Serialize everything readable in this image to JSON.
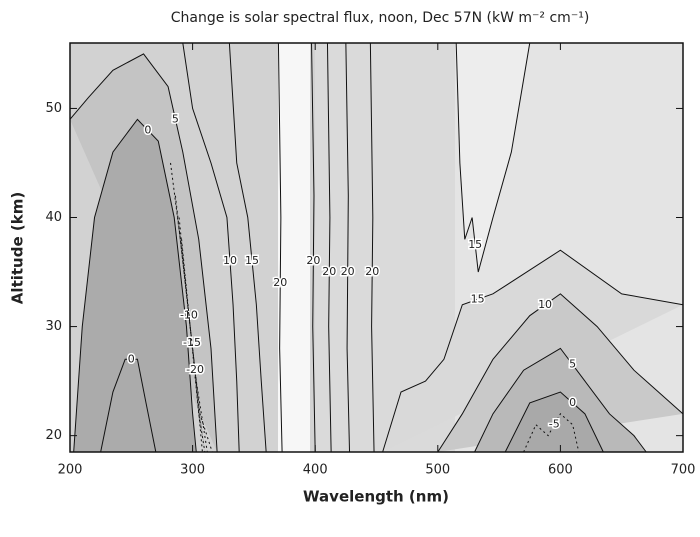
{
  "chart_data": {
    "type": "contour",
    "title": "Change is solar spectral flux, noon, Dec 57N (kW m⁻² cm⁻¹)",
    "xlabel": "Wavelength (nm)",
    "ylabel": "Altitude (km)",
    "xlim": [
      200,
      700
    ],
    "ylim": [
      18.5,
      56
    ],
    "xticks": [
      200,
      300,
      400,
      500,
      600,
      700
    ],
    "yticks": [
      20,
      30,
      40,
      50
    ],
    "contours": [
      {
        "level": 5,
        "fill": "#c4c4c4",
        "x": [
          200,
          215,
          235,
          260,
          280,
          292,
          305,
          315,
          320
        ],
        "y": [
          49,
          51,
          53.5,
          55,
          52,
          46,
          38,
          28,
          18.5
        ]
      },
      {
        "level": 0,
        "fill": "#ababab",
        "x": [
          203,
          210,
          220,
          235,
          255,
          272,
          285,
          295,
          300,
          303
        ],
        "y": [
          18.5,
          30,
          40,
          46,
          49,
          47,
          40,
          30,
          22,
          18.5
        ]
      },
      {
        "level": -5,
        "fill": "#9c9c9c",
        "x": [
          282,
          290,
          298,
          305,
          310
        ],
        "y": [
          45,
          38,
          30,
          22,
          18.5
        ]
      },
      {
        "level": -10,
        "x": [
          286,
          293,
          301,
          308
        ],
        "y": [
          42,
          35,
          27,
          18.5
        ]
      },
      {
        "level": -15,
        "x": [
          289,
          296,
          303,
          312
        ],
        "y": [
          40,
          32,
          25,
          18.5
        ]
      },
      {
        "level": -20,
        "x": [
          291,
          298,
          306,
          316
        ],
        "y": [
          38,
          30,
          22,
          18.5
        ]
      },
      {
        "level": 0,
        "x": [
          225,
          235,
          245,
          255,
          262,
          270
        ],
        "y": [
          18.5,
          24,
          27,
          27,
          23,
          18.5
        ]
      },
      {
        "level": 10,
        "x": [
          292,
          300,
          315,
          328,
          333,
          336,
          338
        ],
        "y": [
          56,
          50,
          45,
          40,
          32,
          25,
          18.5
        ]
      },
      {
        "level": 15,
        "x": [
          330,
          336,
          345,
          352,
          356,
          360
        ],
        "y": [
          56,
          45,
          40,
          32,
          25,
          18.5
        ]
      },
      {
        "level": 20,
        "x": [
          370,
          372,
          371,
          373
        ],
        "y": [
          56,
          40,
          28,
          18.5
        ]
      },
      {
        "level": 20,
        "x": [
          397,
          399,
          398,
          400
        ],
        "y": [
          56,
          42,
          30,
          18.5
        ]
      },
      {
        "level": 20,
        "x": [
          410,
          412,
          411,
          413
        ],
        "y": [
          56,
          40,
          30,
          18.5
        ]
      },
      {
        "level": 20,
        "x": [
          425,
          427,
          426,
          428
        ],
        "y": [
          56,
          42,
          28,
          18.5
        ]
      },
      {
        "level": 20,
        "x": [
          445,
          447,
          446,
          448
        ],
        "y": [
          56,
          40,
          30,
          18.5
        ]
      },
      {
        "level": 15,
        "fill": "#ededed",
        "x": [
          515,
          518,
          522,
          528,
          533,
          545,
          560,
          575
        ],
        "y": [
          56,
          45,
          38,
          40,
          35,
          40,
          46,
          56
        ]
      },
      {
        "level": 15,
        "fill": "#d9d9d9",
        "x": [
          455,
          470,
          490,
          505,
          520,
          545,
          600,
          650,
          700
        ],
        "y": [
          18.5,
          24,
          25,
          27,
          32,
          33,
          37,
          33,
          32
        ]
      },
      {
        "level": 10,
        "fill": "#c9c9c9",
        "x": [
          500,
          520,
          545,
          575,
          600,
          630,
          660,
          700
        ],
        "y": [
          18.5,
          22,
          27,
          31,
          33,
          30,
          26,
          22
        ]
      },
      {
        "level": 5,
        "fill": "#b9b9b9",
        "x": [
          530,
          545,
          570,
          600,
          620,
          640,
          660,
          670
        ],
        "y": [
          18.5,
          22,
          26,
          28,
          25,
          22,
          20,
          18.5
        ]
      },
      {
        "level": 0,
        "fill": "#a9a9a9",
        "x": [
          555,
          575,
          600,
          620,
          635
        ],
        "y": [
          18.5,
          23,
          24,
          22,
          18.5
        ]
      },
      {
        "level": -5,
        "x": [
          570,
          580,
          590,
          600,
          610,
          615
        ],
        "y": [
          18.5,
          21,
          20,
          22,
          21,
          18.5
        ]
      }
    ]
  }
}
